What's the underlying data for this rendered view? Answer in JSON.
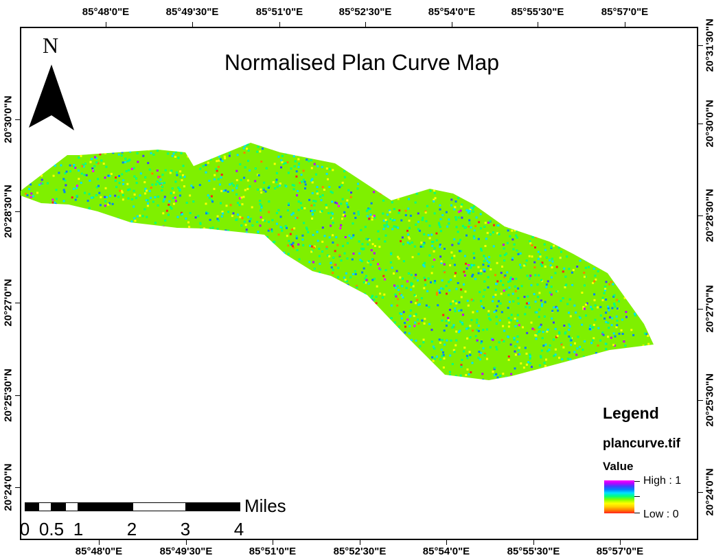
{
  "map": {
    "title": "Normalised Plan Curve Map",
    "north_label": "N",
    "top_ticks": [
      "85°48'0\"E",
      "85°49'30\"E",
      "85°51'0\"E",
      "85°52'30\"E",
      "85°54'0\"E",
      "85°55'30\"E",
      "85°57'0\"E"
    ],
    "bottom_ticks": [
      "85°48'0\"E",
      "85°49'30\"E",
      "85°51'0\"E",
      "85°52'30\"E",
      "85°54'0\"E",
      "85°55'30\"E",
      "85°57'0\"E"
    ],
    "left_ticks": [
      "20°30'0\"N",
      "20°28'30\"N",
      "20°27'0\"N",
      "20°25'30\"N",
      "20°24'0\"N"
    ],
    "right_ticks": [
      "20°31'30\"N",
      "20°30'0\"N",
      "20°28'30\"N",
      "20°27'0\"N",
      "20°25'30\"N",
      "20°24'0\"N"
    ]
  },
  "scale": {
    "unit": "Miles",
    "labels": [
      "0",
      "0.5",
      "1",
      "2",
      "3",
      "4"
    ]
  },
  "legend": {
    "title": "Legend",
    "layer": "plancurve.tif",
    "field": "Value",
    "high": "High : 1",
    "low": "Low : 0",
    "colors": [
      "#ff2020",
      "#ff8000",
      "#ffff00",
      "#80ff00",
      "#00ff80",
      "#00e0ff",
      "#0080ff",
      "#4040ff",
      "#c000ff",
      "#ff00ff"
    ]
  }
}
